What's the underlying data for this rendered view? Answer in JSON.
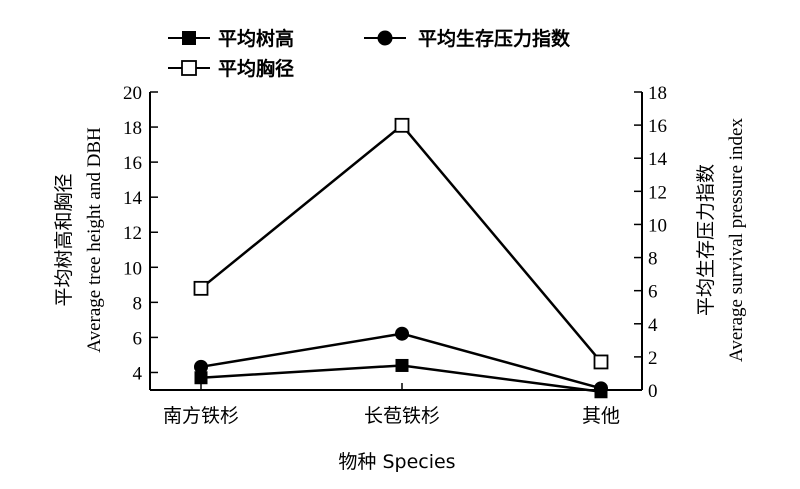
{
  "chart_data": {
    "type": "line",
    "categories": [
      "南方铁杉",
      "长苞铁杉",
      "其他"
    ],
    "xlabel": "物种 Species",
    "ylabel_left": [
      "平均树高和胸径",
      "Average tree height and DBH"
    ],
    "ylabel_right": [
      "平均生存压力指数",
      "Average survival pressure index"
    ],
    "ylim_left": [
      3,
      20
    ],
    "ylim_right": [
      0,
      18
    ],
    "yticks_left": [
      4,
      6,
      8,
      10,
      12,
      14,
      16,
      18,
      20
    ],
    "yticks_right": [
      0,
      2,
      4,
      6,
      8,
      10,
      12,
      14,
      16,
      18
    ],
    "series": [
      {
        "name": "平均树高",
        "axis": "left",
        "marker": "filled-square",
        "values": [
          3.7,
          4.4,
          2.9
        ]
      },
      {
        "name": "平均胸径",
        "axis": "left",
        "marker": "open-square",
        "values": [
          8.8,
          18.1,
          4.6
        ]
      },
      {
        "name": "平均生存压力指数",
        "axis": "right",
        "marker": "filled-circle",
        "values": [
          1.4,
          3.4,
          0.1
        ]
      }
    ],
    "legend": {
      "placement": "top-left"
    },
    "grid": false
  }
}
